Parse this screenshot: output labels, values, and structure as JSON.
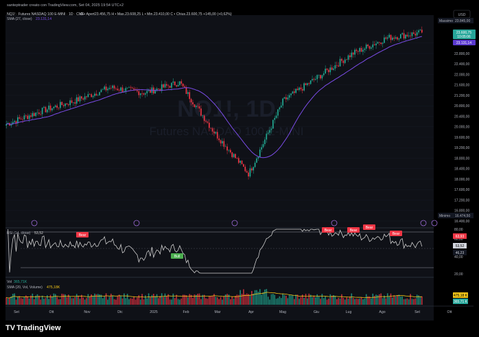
{
  "header": {
    "attribution": "santeptrader creato con TradingView.com, Set 04, 2025 19:54 UTC+2",
    "symbol_line": "NQ1! · Futures NASDAQ 100 E-MINI · 1D · CME",
    "ohlc": "O ▪ Apert23.456,75   H ▪ Mas.23.608,25   L ▪ Min.23.410,00   C ▪ Chius.23.600,75   +145,00 (+0,62%)",
    "sma_line": "SMA (27, close)",
    "sma_value": "23.131,14"
  },
  "currency": "USD",
  "watermark": {
    "symbol": "NQ1!, 1D",
    "name": "Futures NASDAQ 100 E-MINI"
  },
  "colors": {
    "up": "#22ab94",
    "down": "#f23645",
    "sma": "#7b4ce8",
    "rsi": "#cfcfcf",
    "bg": "#000000",
    "text": "#b2b5be",
    "grid": "#161a25",
    "badge_green": "#26a69a"
  },
  "price_axis": {
    "ticks": [
      "23.200,00",
      "22.800,00",
      "22.400,00",
      "22.000,00",
      "21.600,00",
      "21.200,00",
      "20.800,00",
      "20.400,00",
      "20.000,00",
      "19.600,00",
      "19.200,00",
      "18.800,00",
      "18.400,00",
      "18.000,00",
      "17.600,00",
      "17.200,00",
      "16.800,00",
      "16.400,00"
    ],
    "massimo_label": "Massimo",
    "massimo_value": "23.845,00",
    "minimo_label": "Minimo",
    "minimo_value": "16.474,50",
    "last_price": "23.600,75",
    "countdown": "10:05:06",
    "sma_price": "23.131,14"
  },
  "rsi_panel": {
    "label": "RSI (14, close)",
    "value": "53,52",
    "axis": [
      "80,00",
      "60,00",
      "40,00",
      "20,00"
    ],
    "badges": [
      "63,93",
      "53,52",
      "46,23"
    ],
    "signals": [
      "Bear",
      "Bull",
      "Bear",
      "Bear",
      "Bear",
      "Bear"
    ]
  },
  "volume_panel": {
    "label": "Vol",
    "value": "365,71K",
    "sma_label": "SMA (20, Vol, Volume)",
    "sma_value": "475,18K",
    "badges": [
      "475,18 K",
      "365,71 K"
    ]
  },
  "time_axis": [
    "Set",
    "Ott",
    "Nov",
    "Dic",
    "2025",
    "Feb",
    "Mar",
    "Apr",
    "Mag",
    "Giu",
    "Lug",
    "Ago",
    "Set",
    "Ott"
  ],
  "event_icons": [
    "event-icon",
    "event-icon",
    "event-icon",
    "event-icon",
    "event-icon",
    "earnings-icon",
    "event-icon"
  ],
  "logo_text": "TradingView",
  "chart_data": [
    {
      "type": "candlestick",
      "title": "NQ1! · Futures NASDAQ 100 E-MINI · 1D · CME",
      "x": [
        "Set 2024",
        "Ott",
        "Nov",
        "Dic",
        "2025",
        "Feb",
        "Mar",
        "Apr",
        "Mag",
        "Giu",
        "Lug",
        "Ago",
        "Set 2025"
      ],
      "close": [
        20100,
        20600,
        21000,
        21500,
        21300,
        21700,
        19800,
        18200,
        21000,
        21900,
        22800,
        23400,
        23600.75
      ],
      "sma_period": 27,
      "last": {
        "open": 23456.75,
        "high": 23608.25,
        "low": 23410.0,
        "close": 23600.75,
        "change": 145.0,
        "change_pct": 0.62
      },
      "high_of_range": 23845.0,
      "low_of_range": 16474.5,
      "ylim": [
        16400,
        23900
      ]
    },
    {
      "type": "line",
      "title": "RSI (14, close)",
      "last": 53.52,
      "ylim": [
        20,
        80
      ]
    },
    {
      "type": "bar",
      "title": "Vol",
      "last": 365710,
      "sma20": 475180
    }
  ]
}
